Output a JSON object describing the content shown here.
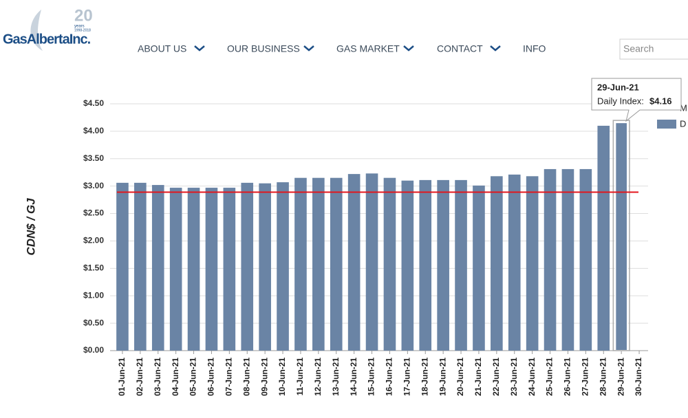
{
  "header": {
    "logo": {
      "name": "GasAlbertaInc.",
      "anniversary": "20",
      "anniversary_caption": "years",
      "anniversary_years": "1998-2018"
    },
    "nav": [
      "ABOUT US",
      "OUR BUSINESS",
      "GAS MARKET",
      "CONTACT",
      "INFO"
    ],
    "search_placeholder": "Search"
  },
  "chart_data": {
    "type": "bar",
    "y_label": "CDN$ / GJ",
    "categories": [
      "01-Jun-21",
      "02-Jun-21",
      "03-Jun-21",
      "04-Jun-21",
      "05-Jun-21",
      "06-Jun-21",
      "07-Jun-21",
      "08-Jun-21",
      "09-Jun-21",
      "10-Jun-21",
      "11-Jun-21",
      "12-Jun-21",
      "13-Jun-21",
      "14-Jun-21",
      "15-Jun-21",
      "16-Jun-21",
      "17-Jun-21",
      "18-Jun-21",
      "19-Jun-21",
      "20-Jun-21",
      "21-Jun-21",
      "22-Jun-21",
      "23-Jun-21",
      "24-Jun-21",
      "25-Jun-21",
      "26-Jun-21",
      "27-Jun-21",
      "28-Jun-21",
      "29-Jun-21",
      "30-Jun-21"
    ],
    "series": [
      {
        "name": "Daily Index",
        "color": "#6a84a5",
        "values": [
          3.06,
          3.06,
          3.02,
          2.97,
          2.97,
          2.97,
          2.97,
          3.06,
          3.05,
          3.07,
          3.15,
          3.15,
          3.15,
          3.22,
          3.23,
          3.15,
          3.1,
          3.11,
          3.11,
          3.11,
          3.01,
          3.18,
          3.21,
          3.18,
          3.31,
          3.31,
          3.31,
          4.1,
          4.16,
          null
        ]
      }
    ],
    "reference_line": {
      "value": 2.89,
      "color": "#e3161c"
    },
    "legend_labels": [
      "M",
      "D"
    ],
    "ylim": [
      0,
      4.5
    ],
    "yticks": [
      {
        "value": 0,
        "label": "$0.00"
      },
      {
        "value": 0.5,
        "label": "$0.50"
      },
      {
        "value": 1,
        "label": "$1.00"
      },
      {
        "value": 1.5,
        "label": "$1.50"
      },
      {
        "value": 2,
        "label": "$2.00"
      },
      {
        "value": 2.5,
        "label": "$2.50"
      },
      {
        "value": 3,
        "label": "$3.00"
      },
      {
        "value": 3.5,
        "label": "$3.50"
      },
      {
        "value": 4,
        "label": "$4.00"
      },
      {
        "value": 4.5,
        "label": "$4.50"
      }
    ],
    "grid": true,
    "tooltip": {
      "index": 28,
      "label": "Daily Index:",
      "value_label": "$4.16"
    }
  }
}
